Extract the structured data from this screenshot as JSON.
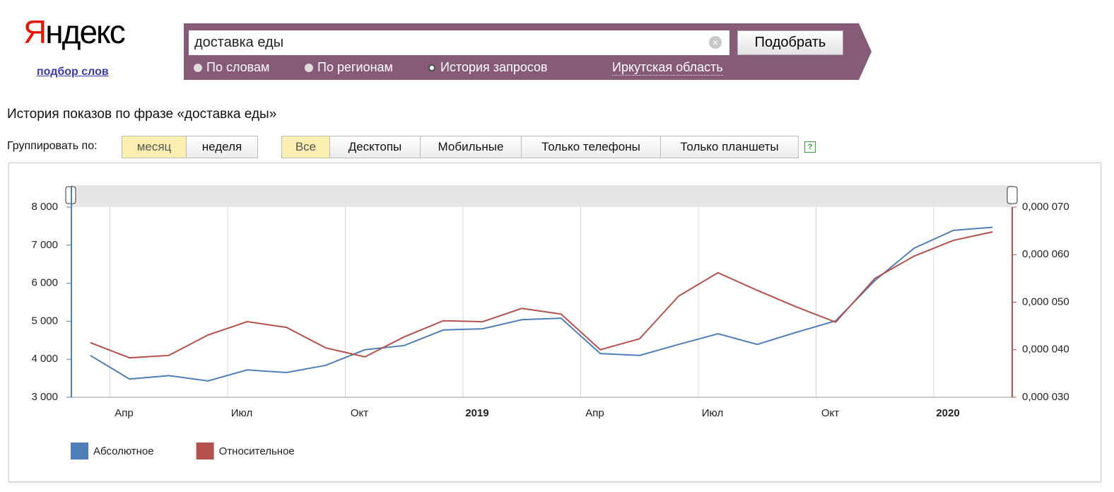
{
  "header": {
    "logo": "Яндекс",
    "logo_sub": "подбор слов",
    "query": "доставка еды",
    "button": "Подобрать",
    "modes": [
      "По словам",
      "По регионам",
      "История запросов"
    ],
    "region": "Иркутская область"
  },
  "page_title": "История показов по фразе «доставка еды»",
  "group_label": "Группировать по:",
  "group_options": [
    "месяц",
    "неделя"
  ],
  "device_options": [
    "Все",
    "Десктопы",
    "Мобильные",
    "Только телефоны",
    "Только планшеты"
  ],
  "help": "?",
  "chart_data": {
    "type": "line",
    "x": [
      "2018-03",
      "2018-04",
      "2018-05",
      "2018-06",
      "2018-07",
      "2018-08",
      "2018-09",
      "2018-10",
      "2018-11",
      "2018-12",
      "2019-01",
      "2019-02",
      "2019-03",
      "2019-04",
      "2019-05",
      "2019-06",
      "2019-07",
      "2019-08",
      "2019-09",
      "2019-10",
      "2019-11",
      "2019-12",
      "2020-01",
      "2020-02"
    ],
    "xlim": [
      "2018-03",
      "2020-02"
    ],
    "xticks": [
      {
        "value": "2018-04",
        "label": "Апр"
      },
      {
        "value": "2018-07",
        "label": "Июл"
      },
      {
        "value": "2018-10",
        "label": "Окт"
      },
      {
        "value": "2019-01",
        "label": "2019"
      },
      {
        "value": "2019-04",
        "label": "Апр"
      },
      {
        "value": "2019-07",
        "label": "Июл"
      },
      {
        "value": "2019-10",
        "label": "Окт"
      },
      {
        "value": "2020-01",
        "label": "2020"
      }
    ],
    "ylim": [
      3000,
      8000
    ],
    "yticks": [
      {
        "value": 3000,
        "label": "3 000"
      },
      {
        "value": 4000,
        "label": "4 000"
      },
      {
        "value": 5000,
        "label": "5 000"
      },
      {
        "value": 6000,
        "label": "6 000"
      },
      {
        "value": 7000,
        "label": "7 000"
      },
      {
        "value": 8000,
        "label": "8 000"
      }
    ],
    "y2lim": [
      3e-05,
      7e-05
    ],
    "y2ticks": [
      {
        "value": 3e-05,
        "label": "0,000 030"
      },
      {
        "value": 4e-05,
        "label": "0,000 040"
      },
      {
        "value": 5e-05,
        "label": "0,000 050"
      },
      {
        "value": 6e-05,
        "label": "0,000 060"
      },
      {
        "value": 7e-05,
        "label": "0,000 070"
      }
    ],
    "grid": true,
    "series": [
      {
        "name": "Абсолютное",
        "color": "#4f7fb8",
        "values": [
          4100,
          3480,
          3570,
          3430,
          3720,
          3650,
          3840,
          4250,
          4360,
          4770,
          4800,
          5040,
          5080,
          4150,
          4100,
          4390,
          4670,
          4390,
          4710,
          5010,
          6070,
          6920,
          7390,
          7470
        ]
      },
      {
        "name": "Относительное",
        "color": "#b5504d",
        "axis": "y2",
        "values": [
          4.15e-05,
          3.83e-05,
          3.88e-05,
          4.31e-05,
          4.59e-05,
          4.47e-05,
          4.04e-05,
          3.85e-05,
          4.27e-05,
          4.61e-05,
          4.59e-05,
          4.87e-05,
          4.75e-05,
          4e-05,
          4.23e-05,
          5.13e-05,
          5.62e-05,
          5.25e-05,
          4.9e-05,
          4.58e-05,
          5.5e-05,
          5.97e-05,
          6.3e-05,
          6.48e-05
        ]
      }
    ]
  }
}
